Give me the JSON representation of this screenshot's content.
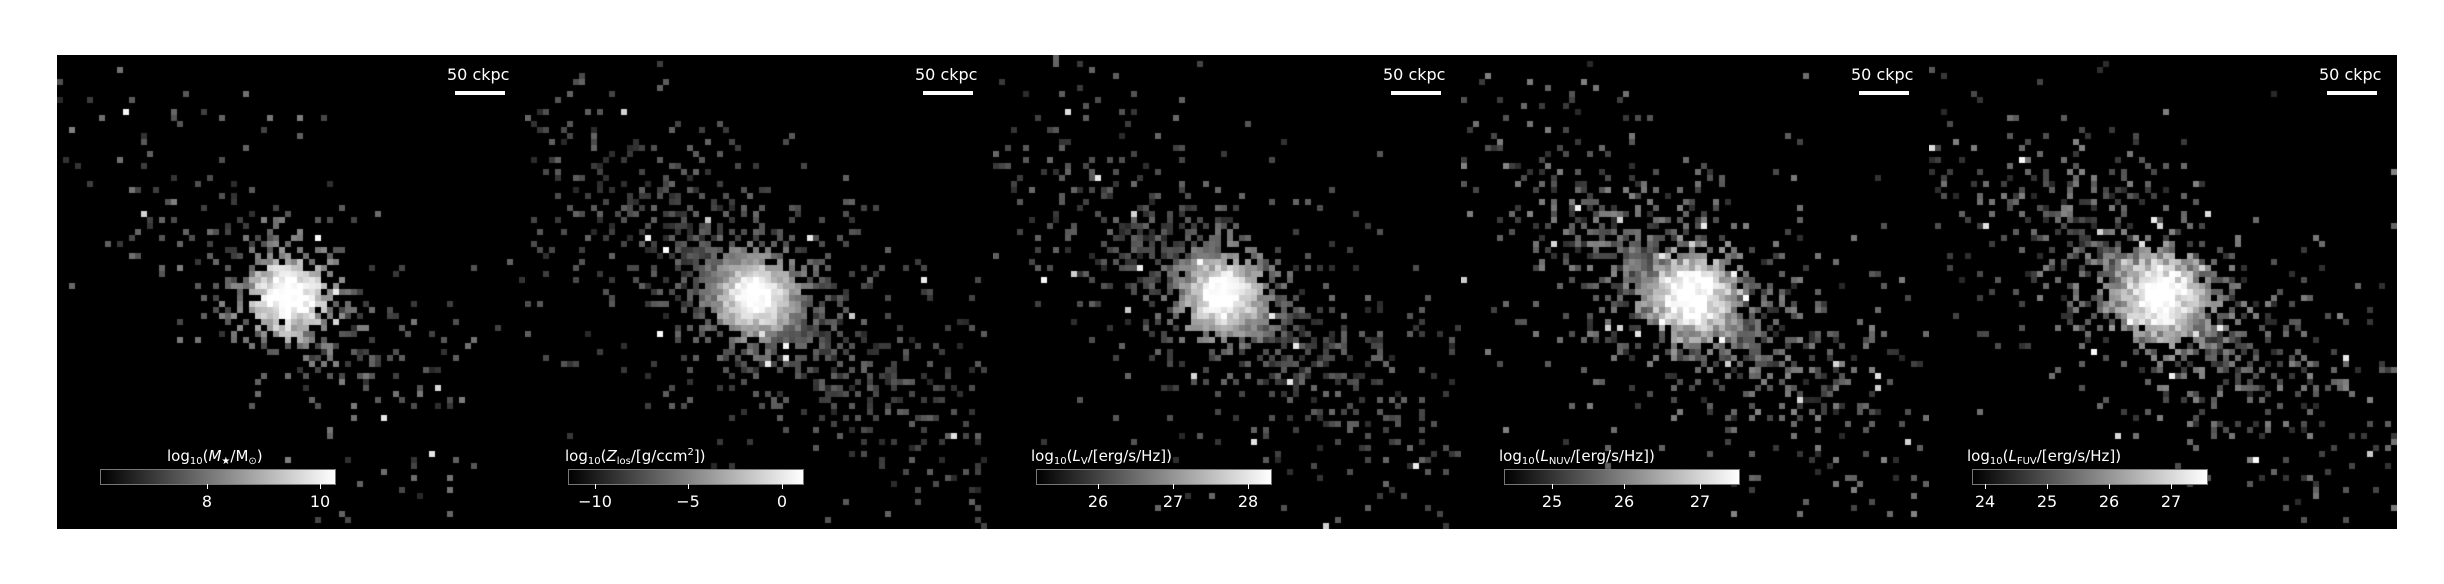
{
  "scalebar_label": "50 ckpc",
  "panels": [
    {
      "title": {
        "pre": "log",
        "base": "10",
        "open": "(",
        "quantity": "M",
        "qsub": "★",
        "rest": "/M",
        "rsub": "⊙",
        "close": ")"
      },
      "ticks": [
        "8",
        "10"
      ],
      "spread": 0.45,
      "brightness": 0.8
    },
    {
      "title": {
        "pre": "log",
        "base": "10",
        "open": "(",
        "quantity": "Z",
        "qsub": "los",
        "rest": "/[g/ccm",
        "rsup": "2",
        "close": "])"
      },
      "ticks": [
        "−10",
        "−5",
        "0"
      ],
      "spread": 1.0,
      "brightness": 0.55
    },
    {
      "title": {
        "pre": "log",
        "base": "10",
        "open": "(",
        "quantity": "L",
        "qsub": "V",
        "rest": "/[erg/s/Hz]",
        "close": ")"
      },
      "ticks": [
        "26",
        "27",
        "28"
      ],
      "spread": 0.9,
      "brightness": 0.6
    },
    {
      "title": {
        "pre": "log",
        "base": "10",
        "open": "(",
        "quantity": "L",
        "qsub": "NUV",
        "rest": "/[erg/s/Hz]",
        "close": ")"
      },
      "ticks": [
        "25",
        "26",
        "27"
      ],
      "spread": 1.0,
      "brightness": 0.85
    },
    {
      "title": {
        "pre": "log",
        "base": "10",
        "open": "(",
        "quantity": "L",
        "qsub": "FUV",
        "rest": "/[erg/s/Hz]",
        "close": ")"
      },
      "ticks": [
        "24",
        "25",
        "26",
        "27"
      ],
      "spread": 1.0,
      "brightness": 0.85
    }
  ],
  "colors": {
    "background": "#000000",
    "foreground": "#ffffff",
    "figure": "#ffffff"
  }
}
